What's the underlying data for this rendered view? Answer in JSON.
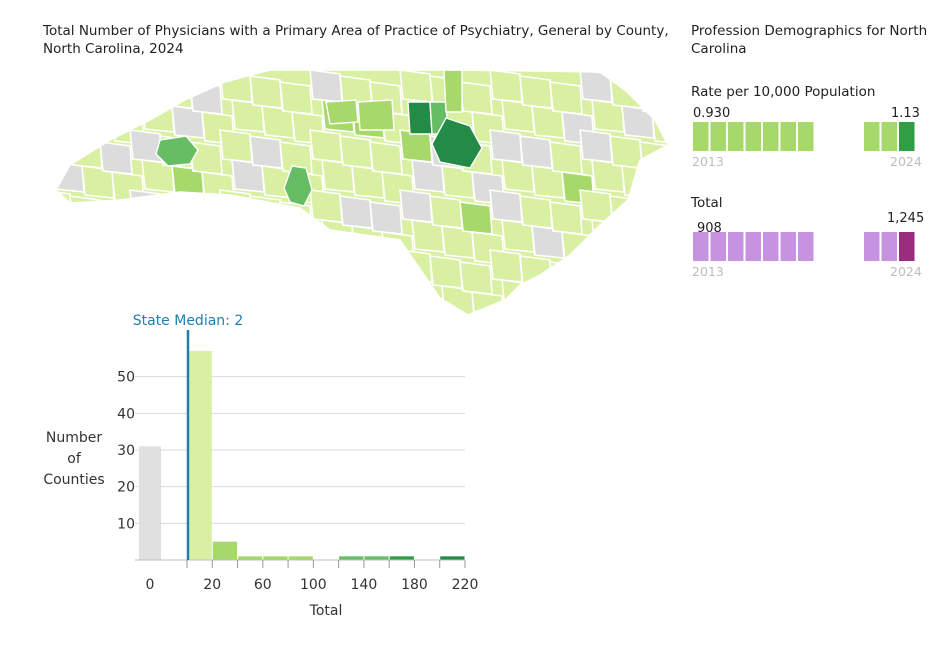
{
  "map": {
    "title": "Total Number of Physicians with a Primary Area of Practice of Psychiatry, General by County, North Carolina, 2024",
    "colors": {
      "none": "#dcdcdc",
      "low": "#d9f0a3",
      "mid": "#a6d96a",
      "high": "#66bd63",
      "top": "#238b45",
      "border": "#ffffff"
    }
  },
  "demographics": {
    "title": "Profession Demographics for North Carolina",
    "rate": {
      "label": "Rate per 10,000 Population",
      "first_value": "0.930",
      "last_value": "1.13",
      "first_year": "2013",
      "last_year": "2024",
      "bar_color": "#a6d96a",
      "highlight_color": "#2f9e44"
    },
    "total": {
      "label": "Total",
      "first_value": "908",
      "last_value": "1,245",
      "first_year": "2013",
      "last_year": "2024",
      "bar_color": "#c792e0",
      "highlight_color": "#9b2d7f"
    }
  },
  "chart_data": {
    "type": "bar",
    "title": "",
    "xlabel": "Total",
    "ylabel": "Number of Counties",
    "ylabel_lines": [
      "Number",
      "of",
      "Counties"
    ],
    "median_label": "State Median: 2",
    "median_value": 2,
    "median_color": "#1f7fad",
    "zero_bar": {
      "category": "0",
      "value": 31,
      "color": "#e0e0e0"
    },
    "bins": [
      {
        "range": [
          0,
          20
        ],
        "value": 57,
        "color": "#d9f0a3"
      },
      {
        "range": [
          20,
          40
        ],
        "value": 5,
        "color": "#a6d96a"
      },
      {
        "range": [
          40,
          60
        ],
        "value": 1,
        "color": "#a6d96a"
      },
      {
        "range": [
          60,
          80
        ],
        "value": 1,
        "color": "#a6d96a"
      },
      {
        "range": [
          80,
          100
        ],
        "value": 1,
        "color": "#a6d96a"
      },
      {
        "range": [
          120,
          140
        ],
        "value": 1,
        "color": "#66bd63"
      },
      {
        "range": [
          140,
          160
        ],
        "value": 1,
        "color": "#66bd63"
      },
      {
        "range": [
          160,
          180
        ],
        "value": 1,
        "color": "#2f9e44"
      },
      {
        "range": [
          200,
          220
        ],
        "value": 1,
        "color": "#238b45"
      }
    ],
    "xlim": [
      0,
      220
    ],
    "ylim": [
      0,
      60
    ],
    "x_ticks": [
      20,
      60,
      100,
      140,
      180,
      220
    ],
    "x_tick_labels": [
      "20",
      "60",
      "100",
      "140",
      "180",
      "220"
    ],
    "y_ticks": [
      10,
      20,
      30,
      40,
      50
    ],
    "y_tick_labels": [
      "10",
      "20",
      "30",
      "40",
      "50"
    ],
    "grid": true
  }
}
